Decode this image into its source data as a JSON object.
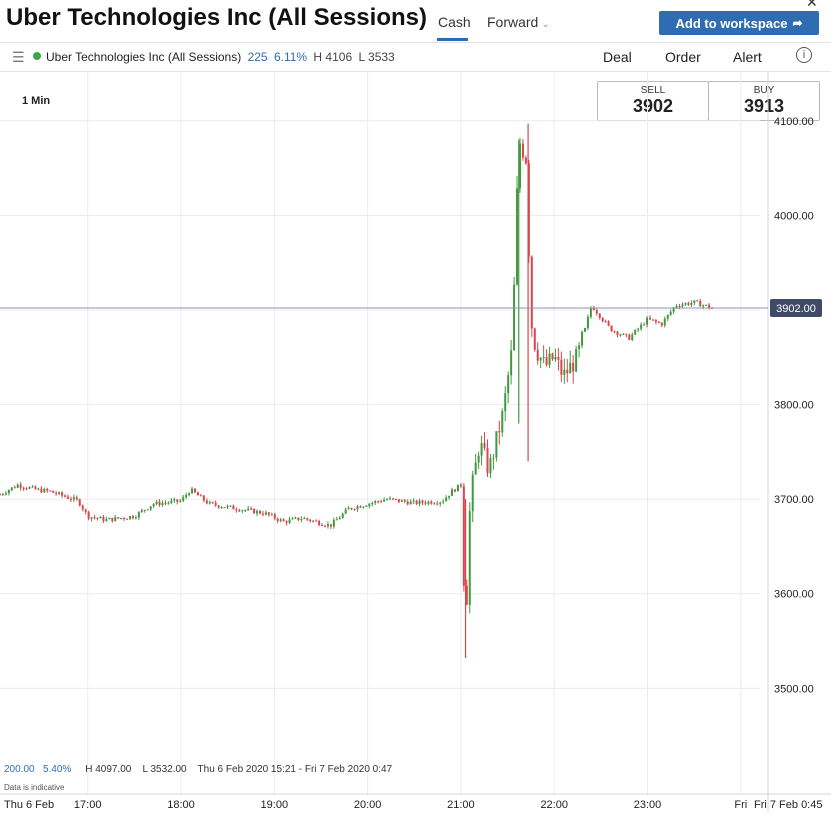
{
  "header": {
    "title": "Uber Technologies Inc (All Sessions)",
    "tabs": [
      "Cash",
      "Forward"
    ],
    "add_button": "Add to workspace"
  },
  "infobar": {
    "name": "Uber Technologies Inc (All Sessions)",
    "change": "225",
    "change_pct": "6.11%",
    "high": "H 4106",
    "low": "L 3533",
    "actions": [
      "Deal",
      "Order",
      "Alert"
    ]
  },
  "interval": "1 Min",
  "prices": {
    "sell_label": "SELL",
    "sell": "3902",
    "buy_label": "BUY",
    "buy": "3913"
  },
  "footer": {
    "change": "200.00",
    "change_pct": "5.40%",
    "high": "H 4097.00",
    "low": "L 3532.00",
    "range": "Thu 6 Feb 2020 15:21 - Fri 7 Feb 2020 0:47",
    "note": "Data is indicative"
  },
  "colors": {
    "up": "#3f9a3f",
    "down": "#d9454a",
    "accent": "#2f6db3",
    "current_line": "#8c92b8",
    "current_tag": "#3f4a68"
  },
  "chart_data": {
    "type": "line",
    "chart_style": "candlestick",
    "ylim": [
      3420,
      4160
    ],
    "x_ticks": [
      "Thu 6 Feb",
      "17:00",
      "18:00",
      "19:00",
      "20:00",
      "21:00",
      "22:00",
      "23:00",
      "Fri",
      "Fri 7 Feb 0:45"
    ],
    "x_tick_hours": [
      16,
      17,
      18,
      19,
      20,
      21,
      22,
      23,
      24
    ],
    "xlim_hours": [
      16.06,
      24.12
    ],
    "y_ticks": [
      3500,
      3600,
      3700,
      3800,
      3900,
      4000,
      4100
    ],
    "y_tick_labels": [
      "3500.00",
      "3600.00",
      "3700.00",
      "3800.00",
      "3900.00",
      "4000.00",
      "4100.00"
    ],
    "current_price": 3902,
    "current_label": "3902.00",
    "series": [
      {
        "values_x_hours": [
          16.06,
          16.25,
          16.45,
          16.6,
          16.9,
          17.0,
          17.2,
          17.5,
          17.7,
          18.0,
          18.1,
          18.3,
          18.6,
          18.9,
          19.1,
          19.3,
          19.6,
          19.8,
          20.0,
          20.2,
          20.5,
          20.8,
          20.9,
          21.0,
          21.05,
          21.1,
          21.2,
          21.3,
          21.45,
          21.55,
          21.62,
          21.7,
          21.75,
          21.8,
          21.9,
          22.0,
          22.1,
          22.25,
          22.4,
          22.6,
          22.8,
          23.0,
          23.15,
          23.3,
          23.5,
          23.7
        ],
        "values": [
          3705,
          3715,
          3710,
          3708,
          3698,
          3682,
          3678,
          3682,
          3695,
          3698,
          3710,
          3695,
          3690,
          3685,
          3676,
          3680,
          3672,
          3690,
          3695,
          3700,
          3696,
          3698,
          3708,
          3715,
          3560,
          3700,
          3760,
          3730,
          3790,
          3860,
          4080,
          4060,
          3890,
          3860,
          3840,
          3850,
          3830,
          3850,
          3905,
          3880,
          3870,
          3890,
          3885,
          3905,
          3908,
          3902
        ]
      }
    ]
  }
}
